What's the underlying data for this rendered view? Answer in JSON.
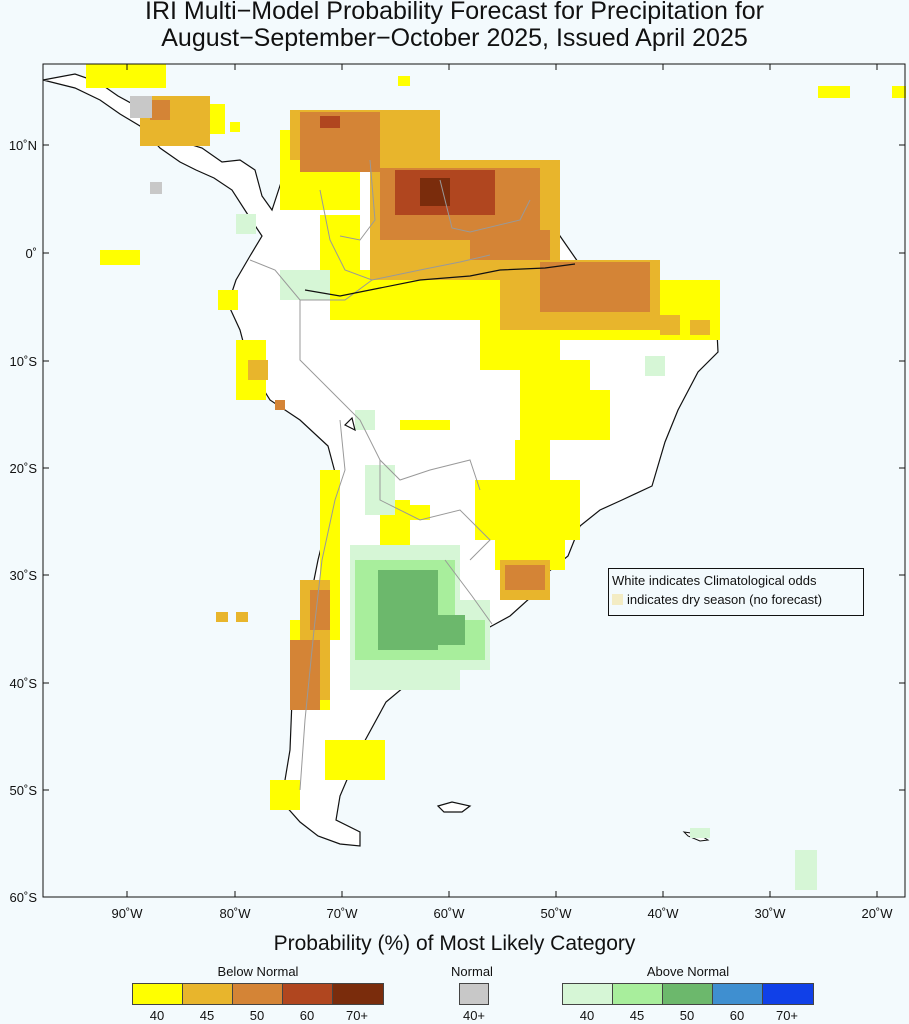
{
  "title_line1": "IRI Multi−Model Probability Forecast for Precipitation for",
  "title_line2": "August−September−October 2025, Issued April 2025",
  "lat_labels": [
    "10˚N",
    "0˚",
    "10˚S",
    "20˚S",
    "30˚S",
    "40˚S",
    "50˚S",
    "60˚S"
  ],
  "lon_labels": [
    "90˚W",
    "80˚W",
    "70˚W",
    "60˚W",
    "50˚W",
    "40˚W",
    "30˚W",
    "20˚W"
  ],
  "note_line1": "White indicates Climatological odds",
  "note_line2": "indicates dry season (no forecast)",
  "legend_title": "Probability (%) of Most Likely Category",
  "below_normal_label": "Below Normal",
  "normal_label": "Normal",
  "above_normal_label": "Above Normal",
  "below_values": [
    "40",
    "45",
    "50",
    "60",
    "70+"
  ],
  "normal_values": [
    "40+"
  ],
  "above_values": [
    "40",
    "45",
    "50",
    "60",
    "70+"
  ],
  "colors": {
    "below": [
      "#ffff00",
      "#e8b52c",
      "#d48436",
      "#b0461f",
      "#7a2c0c"
    ],
    "normal": [
      "#c8c8c8"
    ],
    "above": [
      "#d6f6d6",
      "#a8ee9c",
      "#6cb86c",
      "#3f8fd0",
      "#1040e8"
    ],
    "dry_season": "#f3ecc4",
    "ocean": "#f3fafd",
    "land": "#ffffff"
  }
}
